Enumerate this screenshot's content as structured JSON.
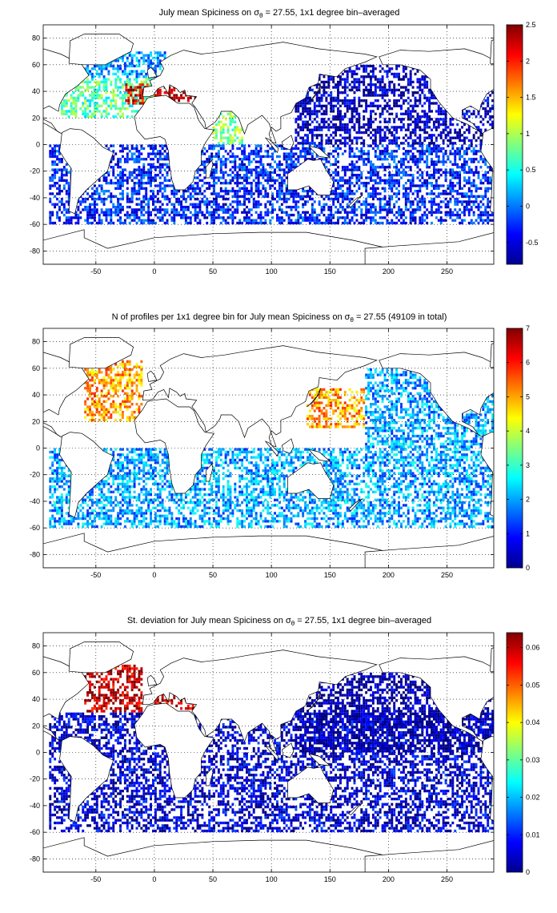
{
  "figure": {
    "panels": [
      {
        "title_pre": "July mean Spiciness on ",
        "title_sym": "σ",
        "title_sub": "θ",
        "title_post": " = 27.55, 1x1 degree bin–averaged",
        "colorbar_ticks": [
          "-0.5",
          "0",
          "0.5",
          "1",
          "1.5",
          "2",
          "2.5"
        ]
      },
      {
        "title_pre": "N of profiles per 1x1 degree bin for July mean Spiciness on ",
        "title_sym": "σ",
        "title_sub": "θ",
        "title_post": " = 27.55 (49109 in total)",
        "colorbar_ticks": [
          "0",
          "1",
          "2",
          "3",
          "4",
          "5",
          "6",
          "7"
        ]
      },
      {
        "title_pre": "St. deviation for July mean Spiciness on ",
        "title_sym": "σ",
        "title_sub": "θ",
        "title_post": " = 27.55, 1x1 degree bin–averaged",
        "colorbar_ticks": [
          "0",
          "0.01",
          "0.02",
          "0.03",
          "0.04",
          "0.05",
          "0.06"
        ]
      }
    ],
    "x_ticks": [
      "-50",
      "0",
      "50",
      "100",
      "150",
      "200",
      "250"
    ],
    "y_ticks": [
      "80",
      "60",
      "40",
      "20",
      "0",
      "-20",
      "-40",
      "-60",
      "-80"
    ]
  },
  "chart_data": [
    {
      "type": "heatmap",
      "title": "July mean Spiciness on σθ = 27.55, 1x1 degree bin–averaged",
      "xlim": [
        -95,
        290
      ],
      "ylim": [
        -90,
        90
      ],
      "colormap": "jet",
      "clim": [
        -0.8,
        2.5
      ],
      "grid": true,
      "regions": [
        {
          "lon": [
            -80,
            0
          ],
          "lat": [
            20,
            50
          ],
          "value": 0.7
        },
        {
          "lon": [
            -25,
            -5
          ],
          "lat": [
            30,
            45
          ],
          "value": 2.2
        },
        {
          "lon": [
            0,
            35
          ],
          "lat": [
            32,
            43
          ],
          "value": 2.4
        },
        {
          "lon": [
            -60,
            10
          ],
          "lat": [
            50,
            70
          ],
          "value": 0.1
        },
        {
          "lon": [
            50,
            75
          ],
          "lat": [
            0,
            25
          ],
          "value": 0.9
        },
        {
          "lon": [
            -90,
            290
          ],
          "lat": [
            -60,
            0
          ],
          "value": -0.3
        },
        {
          "lon": [
            120,
            290
          ],
          "lat": [
            0,
            60
          ],
          "value": -0.6
        }
      ]
    },
    {
      "type": "heatmap",
      "title": "N of profiles per 1x1 degree bin for July mean Spiciness on σθ = 27.55 (49109 in total)",
      "xlim": [
        -95,
        290
      ],
      "ylim": [
        -90,
        90
      ],
      "colormap": "jet",
      "clim": [
        0,
        7
      ],
      "total": 49109,
      "grid": true,
      "regions": [
        {
          "lon": [
            -60,
            -10
          ],
          "lat": [
            20,
            65
          ],
          "value": 5
        },
        {
          "lon": [
            130,
            180
          ],
          "lat": [
            15,
            45
          ],
          "value": 5
        },
        {
          "lon": [
            -90,
            290
          ],
          "lat": [
            -60,
            0
          ],
          "value": 2
        },
        {
          "lon": [
            180,
            290
          ],
          "lat": [
            0,
            60
          ],
          "value": 2
        }
      ]
    },
    {
      "type": "heatmap",
      "title": "St. deviation for July mean Spiciness on σθ = 27.55, 1x1 degree bin–averaged",
      "xlim": [
        -95,
        290
      ],
      "ylim": [
        -90,
        90
      ],
      "colormap": "jet",
      "clim": [
        0,
        0.064
      ],
      "grid": true,
      "regions": [
        {
          "lon": [
            -60,
            -10
          ],
          "lat": [
            30,
            65
          ],
          "value": 0.06
        },
        {
          "lon": [
            0,
            35
          ],
          "lat": [
            32,
            43
          ],
          "value": 0.06
        },
        {
          "lon": [
            -90,
            290
          ],
          "lat": [
            -60,
            30
          ],
          "value": 0.005
        },
        {
          "lon": [
            120,
            290
          ],
          "lat": [
            0,
            60
          ],
          "value": 0.002
        }
      ]
    }
  ]
}
